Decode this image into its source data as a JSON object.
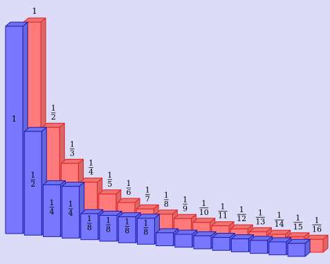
{
  "chart_data": {
    "type": "bar",
    "title": "",
    "xlabel": "",
    "ylabel": "",
    "ylim": [
      0,
      1
    ],
    "categories": [
      "1",
      "2",
      "3",
      "4",
      "5",
      "6",
      "7",
      "8",
      "9",
      "10",
      "11",
      "12",
      "13",
      "14",
      "15",
      "16"
    ],
    "series": [
      {
        "color": "#ff7b7b",
        "values": [
          1,
          0.5,
          0.3333,
          0.25,
          0.2,
          0.1667,
          0.1429,
          0.125,
          0.1111,
          0.1,
          0.0909,
          0.0833,
          0.0769,
          0.0714,
          0.0667,
          0.0625
        ],
        "labels": [
          {
            "whole": "1"
          },
          {
            "num": "1",
            "den": "2"
          },
          {
            "num": "1",
            "den": "3"
          },
          {
            "num": "1",
            "den": "4"
          },
          {
            "num": "1",
            "den": "5"
          },
          {
            "num": "1",
            "den": "6"
          },
          {
            "num": "1",
            "den": "7"
          },
          {
            "num": "1",
            "den": "8"
          },
          {
            "num": "1",
            "den": "9"
          },
          {
            "num": "1",
            "den": "10"
          },
          {
            "num": "1",
            "den": "11"
          },
          {
            "num": "1",
            "den": "12"
          },
          {
            "num": "1",
            "den": "13"
          },
          {
            "num": "1",
            "den": "14"
          },
          {
            "num": "1",
            "den": "15"
          },
          {
            "num": "1",
            "den": "16"
          }
        ]
      },
      {
        "color": "#7878ff",
        "values": [
          1,
          0.5,
          0.25,
          0.25,
          0.125,
          0.125,
          0.125,
          0.125,
          0.0625,
          0.0625,
          0.0625,
          0.0625,
          0.0625,
          0.0625,
          0.0625,
          0.0625
        ],
        "labels": [
          {
            "whole": "1"
          },
          {
            "num": "1",
            "den": "2"
          },
          {
            "num": "1",
            "den": "4"
          },
          {
            "num": "1",
            "den": "4"
          },
          {
            "num": "1",
            "den": "8"
          },
          {
            "num": "1",
            "den": "8"
          },
          {
            "num": "1",
            "den": "8"
          },
          {
            "num": "1",
            "den": "8"
          },
          {},
          {},
          {},
          {},
          {},
          {},
          {},
          {}
        ]
      }
    ],
    "background": "#dcdcf8"
  }
}
